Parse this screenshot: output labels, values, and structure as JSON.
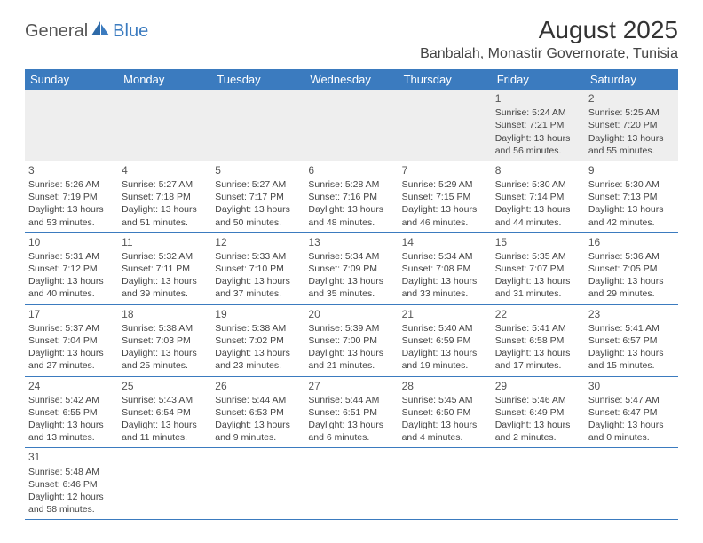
{
  "logo": {
    "part1": "General",
    "part2": "Blue"
  },
  "title": "August 2025",
  "location": "Banbalah, Monastir Governorate, Tunisia",
  "colors": {
    "header_bg": "#3b7bbf",
    "header_fg": "#ffffff",
    "row_border": "#3b7bbf",
    "first_row_bg": "#eeeeee",
    "text": "#444444",
    "logo_gray": "#555555",
    "logo_blue": "#3b7bbf"
  },
  "day_headers": [
    "Sunday",
    "Monday",
    "Tuesday",
    "Wednesday",
    "Thursday",
    "Friday",
    "Saturday"
  ],
  "weeks": [
    [
      null,
      null,
      null,
      null,
      null,
      {
        "n": "1",
        "sr": "Sunrise: 5:24 AM",
        "ss": "Sunset: 7:21 PM",
        "d1": "Daylight: 13 hours",
        "d2": "and 56 minutes."
      },
      {
        "n": "2",
        "sr": "Sunrise: 5:25 AM",
        "ss": "Sunset: 7:20 PM",
        "d1": "Daylight: 13 hours",
        "d2": "and 55 minutes."
      }
    ],
    [
      {
        "n": "3",
        "sr": "Sunrise: 5:26 AM",
        "ss": "Sunset: 7:19 PM",
        "d1": "Daylight: 13 hours",
        "d2": "and 53 minutes."
      },
      {
        "n": "4",
        "sr": "Sunrise: 5:27 AM",
        "ss": "Sunset: 7:18 PM",
        "d1": "Daylight: 13 hours",
        "d2": "and 51 minutes."
      },
      {
        "n": "5",
        "sr": "Sunrise: 5:27 AM",
        "ss": "Sunset: 7:17 PM",
        "d1": "Daylight: 13 hours",
        "d2": "and 50 minutes."
      },
      {
        "n": "6",
        "sr": "Sunrise: 5:28 AM",
        "ss": "Sunset: 7:16 PM",
        "d1": "Daylight: 13 hours",
        "d2": "and 48 minutes."
      },
      {
        "n": "7",
        "sr": "Sunrise: 5:29 AM",
        "ss": "Sunset: 7:15 PM",
        "d1": "Daylight: 13 hours",
        "d2": "and 46 minutes."
      },
      {
        "n": "8",
        "sr": "Sunrise: 5:30 AM",
        "ss": "Sunset: 7:14 PM",
        "d1": "Daylight: 13 hours",
        "d2": "and 44 minutes."
      },
      {
        "n": "9",
        "sr": "Sunrise: 5:30 AM",
        "ss": "Sunset: 7:13 PM",
        "d1": "Daylight: 13 hours",
        "d2": "and 42 minutes."
      }
    ],
    [
      {
        "n": "10",
        "sr": "Sunrise: 5:31 AM",
        "ss": "Sunset: 7:12 PM",
        "d1": "Daylight: 13 hours",
        "d2": "and 40 minutes."
      },
      {
        "n": "11",
        "sr": "Sunrise: 5:32 AM",
        "ss": "Sunset: 7:11 PM",
        "d1": "Daylight: 13 hours",
        "d2": "and 39 minutes."
      },
      {
        "n": "12",
        "sr": "Sunrise: 5:33 AM",
        "ss": "Sunset: 7:10 PM",
        "d1": "Daylight: 13 hours",
        "d2": "and 37 minutes."
      },
      {
        "n": "13",
        "sr": "Sunrise: 5:34 AM",
        "ss": "Sunset: 7:09 PM",
        "d1": "Daylight: 13 hours",
        "d2": "and 35 minutes."
      },
      {
        "n": "14",
        "sr": "Sunrise: 5:34 AM",
        "ss": "Sunset: 7:08 PM",
        "d1": "Daylight: 13 hours",
        "d2": "and 33 minutes."
      },
      {
        "n": "15",
        "sr": "Sunrise: 5:35 AM",
        "ss": "Sunset: 7:07 PM",
        "d1": "Daylight: 13 hours",
        "d2": "and 31 minutes."
      },
      {
        "n": "16",
        "sr": "Sunrise: 5:36 AM",
        "ss": "Sunset: 7:05 PM",
        "d1": "Daylight: 13 hours",
        "d2": "and 29 minutes."
      }
    ],
    [
      {
        "n": "17",
        "sr": "Sunrise: 5:37 AM",
        "ss": "Sunset: 7:04 PM",
        "d1": "Daylight: 13 hours",
        "d2": "and 27 minutes."
      },
      {
        "n": "18",
        "sr": "Sunrise: 5:38 AM",
        "ss": "Sunset: 7:03 PM",
        "d1": "Daylight: 13 hours",
        "d2": "and 25 minutes."
      },
      {
        "n": "19",
        "sr": "Sunrise: 5:38 AM",
        "ss": "Sunset: 7:02 PM",
        "d1": "Daylight: 13 hours",
        "d2": "and 23 minutes."
      },
      {
        "n": "20",
        "sr": "Sunrise: 5:39 AM",
        "ss": "Sunset: 7:00 PM",
        "d1": "Daylight: 13 hours",
        "d2": "and 21 minutes."
      },
      {
        "n": "21",
        "sr": "Sunrise: 5:40 AM",
        "ss": "Sunset: 6:59 PM",
        "d1": "Daylight: 13 hours",
        "d2": "and 19 minutes."
      },
      {
        "n": "22",
        "sr": "Sunrise: 5:41 AM",
        "ss": "Sunset: 6:58 PM",
        "d1": "Daylight: 13 hours",
        "d2": "and 17 minutes."
      },
      {
        "n": "23",
        "sr": "Sunrise: 5:41 AM",
        "ss": "Sunset: 6:57 PM",
        "d1": "Daylight: 13 hours",
        "d2": "and 15 minutes."
      }
    ],
    [
      {
        "n": "24",
        "sr": "Sunrise: 5:42 AM",
        "ss": "Sunset: 6:55 PM",
        "d1": "Daylight: 13 hours",
        "d2": "and 13 minutes."
      },
      {
        "n": "25",
        "sr": "Sunrise: 5:43 AM",
        "ss": "Sunset: 6:54 PM",
        "d1": "Daylight: 13 hours",
        "d2": "and 11 minutes."
      },
      {
        "n": "26",
        "sr": "Sunrise: 5:44 AM",
        "ss": "Sunset: 6:53 PM",
        "d1": "Daylight: 13 hours",
        "d2": "and 9 minutes."
      },
      {
        "n": "27",
        "sr": "Sunrise: 5:44 AM",
        "ss": "Sunset: 6:51 PM",
        "d1": "Daylight: 13 hours",
        "d2": "and 6 minutes."
      },
      {
        "n": "28",
        "sr": "Sunrise: 5:45 AM",
        "ss": "Sunset: 6:50 PM",
        "d1": "Daylight: 13 hours",
        "d2": "and 4 minutes."
      },
      {
        "n": "29",
        "sr": "Sunrise: 5:46 AM",
        "ss": "Sunset: 6:49 PM",
        "d1": "Daylight: 13 hours",
        "d2": "and 2 minutes."
      },
      {
        "n": "30",
        "sr": "Sunrise: 5:47 AM",
        "ss": "Sunset: 6:47 PM",
        "d1": "Daylight: 13 hours",
        "d2": "and 0 minutes."
      }
    ],
    [
      {
        "n": "31",
        "sr": "Sunrise: 5:48 AM",
        "ss": "Sunset: 6:46 PM",
        "d1": "Daylight: 12 hours",
        "d2": "and 58 minutes."
      },
      null,
      null,
      null,
      null,
      null,
      null
    ]
  ]
}
